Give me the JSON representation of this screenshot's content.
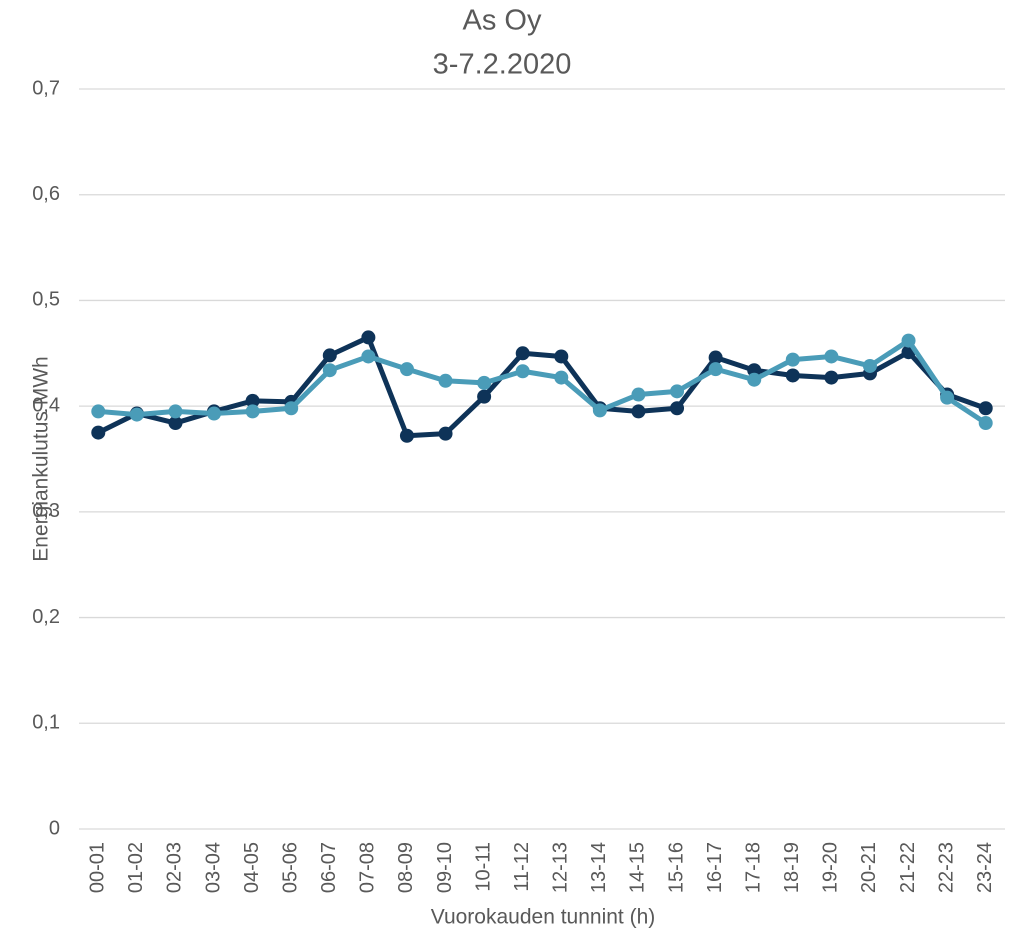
{
  "chart_data": {
    "type": "line",
    "title": "As Oy",
    "subtitle": "3-7.2.2020",
    "x_label": "Vuorokauden tunnint (h)",
    "y_label": "Energiankulutus MWh",
    "categories": [
      "00-01",
      "01-02",
      "02-03",
      "03-04",
      "04-05",
      "05-06",
      "06-07",
      "07-08",
      "08-09",
      "09-10",
      "10-11",
      "11-12",
      "12-13",
      "13-14",
      "14-15",
      "15-16",
      "16-17",
      "17-18",
      "18-19",
      "19-20",
      "20-21",
      "21-22",
      "22-23",
      "23-24"
    ],
    "series": [
      {
        "color": "#0e3358",
        "values": [
          0.375,
          0.393,
          0.384,
          0.395,
          0.405,
          0.404,
          0.448,
          0.465,
          0.372,
          0.374,
          0.409,
          0.45,
          0.447,
          0.398,
          0.395,
          0.398,
          0.446,
          0.434,
          0.429,
          0.427,
          0.431,
          0.451,
          0.411,
          0.398
        ]
      },
      {
        "color": "#4a9cb8",
        "values": [
          0.395,
          0.392,
          0.395,
          0.393,
          0.395,
          0.398,
          0.434,
          0.447,
          0.435,
          0.424,
          0.422,
          0.433,
          0.427,
          0.396,
          0.411,
          0.414,
          0.435,
          0.425,
          0.444,
          0.447,
          0.438,
          0.462,
          0.408,
          0.384
        ]
      }
    ],
    "ylim": [
      0,
      0.7
    ],
    "yticks": [
      0,
      {
        "value": 0.1,
        "label": "0,1"
      },
      {
        "value": 0.2,
        "label": "0,2"
      },
      {
        "value": 0.3,
        "label": "0,3"
      },
      {
        "value": 0.4,
        "label": "0,4"
      },
      {
        "value": 0.5,
        "label": "0,5"
      },
      {
        "value": 0.6,
        "label": "0,6"
      },
      {
        "value": 0.7,
        "label": "0,7"
      }
    ],
    "grid": true
  }
}
